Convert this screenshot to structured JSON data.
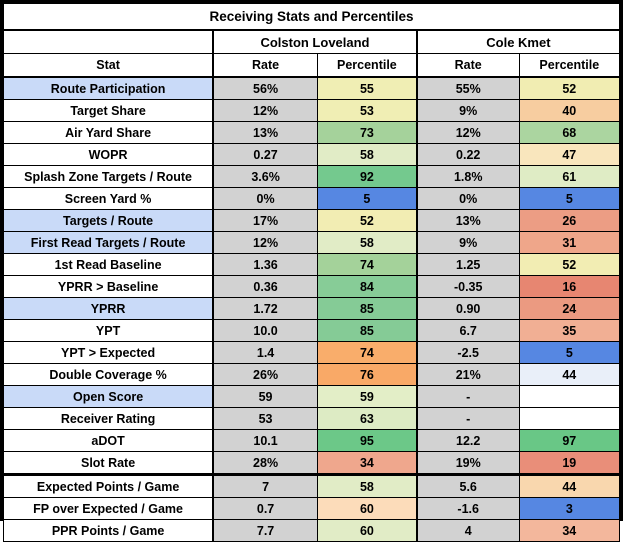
{
  "title": "Receiving Stats and Percentiles",
  "players": [
    {
      "name": "Colston Loveland"
    },
    {
      "name": "Cole Kmet"
    }
  ],
  "columns": {
    "stat_header": "Stat",
    "rate_header": "Rate",
    "percentile_header": "Percentile"
  },
  "colors": {
    "rate_cell_bg": "#d2d2d2",
    "stat_highlight_bg": "#c9daf8",
    "low_percentile_blue": "#5687e2",
    "border": "#000000"
  },
  "rows": [
    {
      "stat": "Route Participation",
      "highlight": true,
      "thick_top": false,
      "loveland": {
        "rate": "56%",
        "percentile": "55",
        "percentile_bg": "#f0eeb4"
      },
      "kmet": {
        "rate": "55%",
        "percentile": "52",
        "percentile_bg": "#f1edb2"
      }
    },
    {
      "stat": "Target Share",
      "highlight": false,
      "thick_top": false,
      "loveland": {
        "rate": "12%",
        "percentile": "53",
        "percentile_bg": "#f0eeb4"
      },
      "kmet": {
        "rate": "9%",
        "percentile": "40",
        "percentile_bg": "#f7cda0"
      }
    },
    {
      "stat": "Air Yard Share",
      "highlight": false,
      "thick_top": false,
      "loveland": {
        "rate": "13%",
        "percentile": "73",
        "percentile_bg": "#a5d29b"
      },
      "kmet": {
        "rate": "12%",
        "percentile": "68",
        "percentile_bg": "#abd5a0"
      }
    },
    {
      "stat": "WOPR",
      "highlight": false,
      "thick_top": false,
      "loveland": {
        "rate": "0.27",
        "percentile": "58",
        "percentile_bg": "#e1ecc6"
      },
      "kmet": {
        "rate": "0.22",
        "percentile": "47",
        "percentile_bg": "#f9e6bd"
      }
    },
    {
      "stat": "Splash Zone Targets / Route",
      "highlight": false,
      "thick_top": false,
      "loveland": {
        "rate": "3.6%",
        "percentile": "92",
        "percentile_bg": "#74c98e"
      },
      "kmet": {
        "rate": "1.8%",
        "percentile": "61",
        "percentile_bg": "#dfecc5"
      }
    },
    {
      "stat": "Screen Yard %",
      "highlight": false,
      "thick_top": false,
      "loveland": {
        "rate": "0%",
        "percentile": "5",
        "percentile_bg": "#5687e2"
      },
      "kmet": {
        "rate": "0%",
        "percentile": "5",
        "percentile_bg": "#5687e2"
      }
    },
    {
      "stat": "Targets / Route",
      "highlight": true,
      "thick_top": false,
      "loveland": {
        "rate": "17%",
        "percentile": "52",
        "percentile_bg": "#f2edb3"
      },
      "kmet": {
        "rate": "13%",
        "percentile": "26",
        "percentile_bg": "#ec9d84"
      }
    },
    {
      "stat": "First Read Targets / Route",
      "highlight": true,
      "thick_top": false,
      "loveland": {
        "rate": "12%",
        "percentile": "58",
        "percentile_bg": "#e1ecc6"
      },
      "kmet": {
        "rate": "9%",
        "percentile": "31",
        "percentile_bg": "#efa68a"
      }
    },
    {
      "stat": "1st Read Baseline",
      "highlight": false,
      "thick_top": false,
      "loveland": {
        "rate": "1.36",
        "percentile": "74",
        "percentile_bg": "#a4d29a"
      },
      "kmet": {
        "rate": "1.25",
        "percentile": "52",
        "percentile_bg": "#f2edb3"
      }
    },
    {
      "stat": "YPRR > Baseline",
      "highlight": false,
      "thick_top": false,
      "loveland": {
        "rate": "0.36",
        "percentile": "84",
        "percentile_bg": "#87cc97"
      },
      "kmet": {
        "rate": "-0.35",
        "percentile": "16",
        "percentile_bg": "#e78671"
      }
    },
    {
      "stat": "YPRR",
      "highlight": true,
      "thick_top": false,
      "loveland": {
        "rate": "1.72",
        "percentile": "85",
        "percentile_bg": "#85cb96"
      },
      "kmet": {
        "rate": "0.90",
        "percentile": "24",
        "percentile_bg": "#eb9a81"
      }
    },
    {
      "stat": "YPT",
      "highlight": false,
      "thick_top": false,
      "loveland": {
        "rate": "10.0",
        "percentile": "85",
        "percentile_bg": "#85cb96"
      },
      "kmet": {
        "rate": "6.7",
        "percentile": "35",
        "percentile_bg": "#f1af94"
      }
    },
    {
      "stat": "YPT > Expected",
      "highlight": false,
      "thick_top": false,
      "loveland": {
        "rate": "1.4",
        "percentile": "74",
        "percentile_bg": "#f9ad6b"
      },
      "kmet": {
        "rate": "-2.5",
        "percentile": "5",
        "percentile_bg": "#5687e2"
      }
    },
    {
      "stat": "Double Coverage %",
      "highlight": false,
      "thick_top": false,
      "loveland": {
        "rate": "26%",
        "percentile": "76",
        "percentile_bg": "#f9a967"
      },
      "kmet": {
        "rate": "21%",
        "percentile": "44",
        "percentile_bg": "#e9eff9"
      }
    },
    {
      "stat": "Open Score",
      "highlight": true,
      "thick_top": false,
      "loveland": {
        "rate": "59",
        "percentile": "59",
        "percentile_bg": "#e3eec7"
      },
      "kmet": {
        "rate": "-",
        "percentile": "",
        "percentile_bg": "#ffffff"
      }
    },
    {
      "stat": "Receiver Rating",
      "highlight": false,
      "thick_top": false,
      "loveland": {
        "rate": "53",
        "percentile": "63",
        "percentile_bg": "#ddebc4"
      },
      "kmet": {
        "rate": "-",
        "percentile": "",
        "percentile_bg": "#ffffff"
      }
    },
    {
      "stat": "aDOT",
      "highlight": false,
      "thick_top": false,
      "loveland": {
        "rate": "10.1",
        "percentile": "95",
        "percentile_bg": "#6cc888"
      },
      "kmet": {
        "rate": "12.2",
        "percentile": "97",
        "percentile_bg": "#69c786"
      }
    },
    {
      "stat": "Slot Rate",
      "highlight": false,
      "thick_top": false,
      "loveland": {
        "rate": "28%",
        "percentile": "34",
        "percentile_bg": "#efa78d"
      },
      "kmet": {
        "rate": "19%",
        "percentile": "19",
        "percentile_bg": "#e98e79"
      }
    },
    {
      "stat": "Expected Points / Game",
      "highlight": false,
      "thick_top": true,
      "loveland": {
        "rate": "7",
        "percentile": "58",
        "percentile_bg": "#e1ecc6"
      },
      "kmet": {
        "rate": "5.6",
        "percentile": "44",
        "percentile_bg": "#f9d7ae"
      }
    },
    {
      "stat": "FP over Expected / Game",
      "highlight": false,
      "thick_top": false,
      "loveland": {
        "rate": "0.7",
        "percentile": "60",
        "percentile_bg": "#fcdcba"
      },
      "kmet": {
        "rate": "-1.6",
        "percentile": "3",
        "percentile_bg": "#5687e2"
      }
    },
    {
      "stat": "PPR Points / Game",
      "highlight": false,
      "thick_top": false,
      "loveland": {
        "rate": "7.7",
        "percentile": "60",
        "percentile_bg": "#e1ecc6"
      },
      "kmet": {
        "rate": "4",
        "percentile": "34",
        "percentile_bg": "#f3b79c"
      }
    }
  ]
}
